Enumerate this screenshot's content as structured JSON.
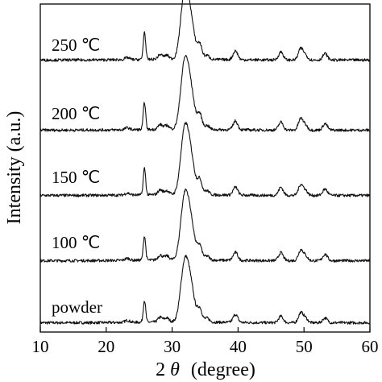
{
  "chart_data": {
    "type": "line",
    "xlabel": {
      "prefix": "2",
      "symbol": "θ",
      "suffix": "(degree)"
    },
    "ylabel": "Intensity (a.u.)",
    "xlim": [
      10,
      60
    ],
    "xticks": [
      10,
      20,
      30,
      40,
      50,
      60
    ],
    "y_units": "arbitrary, stacked traces",
    "grid": false,
    "series": [
      {
        "name": "powder",
        "baseline": 0,
        "label_position": "left",
        "peaks": [
          [
            23.2,
            0.25
          ],
          [
            25.8,
            2.7
          ],
          [
            28.2,
            0.6
          ],
          [
            29.2,
            0.5
          ],
          [
            31.7,
            4.8
          ],
          [
            32.3,
            4.0
          ],
          [
            33.0,
            2.8
          ],
          [
            34.2,
            1.6
          ],
          [
            35.3,
            0.5
          ],
          [
            39.6,
            1.0
          ],
          [
            46.5,
            0.8
          ],
          [
            49.5,
            1.2
          ],
          [
            50.2,
            0.6
          ],
          [
            53.2,
            0.6
          ]
        ]
      },
      {
        "name": "100 ℃",
        "baseline": 1,
        "label_position": "left",
        "peaks": [
          [
            23.2,
            0.25
          ],
          [
            25.8,
            3.0
          ],
          [
            28.2,
            0.6
          ],
          [
            29.2,
            0.5
          ],
          [
            31.7,
            5.2
          ],
          [
            32.3,
            4.2
          ],
          [
            33.0,
            3.0
          ],
          [
            34.2,
            1.7
          ],
          [
            35.3,
            0.5
          ],
          [
            39.6,
            1.0
          ],
          [
            46.5,
            1.0
          ],
          [
            49.5,
            1.3
          ],
          [
            50.2,
            0.6
          ],
          [
            53.2,
            0.8
          ]
        ]
      },
      {
        "name": "150 ℃",
        "baseline": 2,
        "label_position": "left",
        "peaks": [
          [
            23.2,
            0.25
          ],
          [
            25.8,
            3.3
          ],
          [
            28.2,
            0.6
          ],
          [
            29.2,
            0.5
          ],
          [
            31.7,
            5.3
          ],
          [
            32.3,
            4.3
          ],
          [
            33.0,
            3.0
          ],
          [
            34.2,
            1.8
          ],
          [
            35.3,
            0.5
          ],
          [
            39.6,
            1.0
          ],
          [
            46.5,
            1.0
          ],
          [
            49.5,
            1.3
          ],
          [
            50.2,
            0.6
          ],
          [
            53.2,
            0.8
          ]
        ]
      },
      {
        "name": "200 ℃",
        "baseline": 3,
        "label_position": "left",
        "peaks": [
          [
            23.2,
            0.25
          ],
          [
            25.8,
            3.4
          ],
          [
            28.2,
            0.6
          ],
          [
            29.2,
            0.5
          ],
          [
            31.7,
            5.5
          ],
          [
            32.3,
            4.4
          ],
          [
            33.0,
            3.0
          ],
          [
            34.2,
            1.8
          ],
          [
            35.3,
            0.5
          ],
          [
            39.6,
            1.1
          ],
          [
            46.5,
            1.0
          ],
          [
            49.5,
            1.4
          ],
          [
            50.2,
            0.6
          ],
          [
            53.2,
            0.8
          ]
        ]
      },
      {
        "name": "250 ℃",
        "baseline": 4,
        "label_position": "left",
        "peaks": [
          [
            23.2,
            0.25
          ],
          [
            25.8,
            3.4
          ],
          [
            28.2,
            0.6
          ],
          [
            29.2,
            0.5
          ],
          [
            31.7,
            5.5
          ],
          [
            32.3,
            4.4
          ],
          [
            33.0,
            3.0
          ],
          [
            34.2,
            1.8
          ],
          [
            35.3,
            0.5
          ],
          [
            39.6,
            1.1
          ],
          [
            46.5,
            1.0
          ],
          [
            49.5,
            1.4
          ],
          [
            50.2,
            0.6
          ],
          [
            53.2,
            0.8
          ]
        ]
      }
    ]
  }
}
